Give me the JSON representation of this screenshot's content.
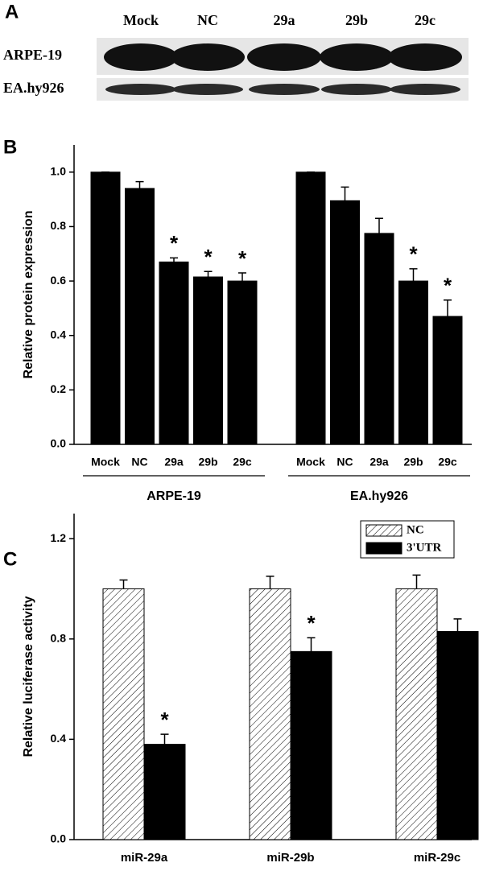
{
  "blot": {
    "panel_label": "A",
    "lanes": [
      "Mock",
      "NC",
      "29a",
      "29b",
      "29c"
    ],
    "rows": [
      "ARPE-19",
      "EA.hy926"
    ]
  },
  "chart_data": [
    {
      "type": "grouped-bar",
      "panel_label": "B",
      "y_label": "Relative protein expression",
      "ylim": [
        0,
        1.1
      ],
      "yticks": [
        {
          "value": 0,
          "label": "0.0"
        },
        {
          "value": 0.2,
          "label": "0.2"
        },
        {
          "value": 0.4,
          "label": "0.4"
        },
        {
          "value": 0.6,
          "label": "0.6"
        },
        {
          "value": 0.8,
          "label": "0.8"
        },
        {
          "value": 1,
          "label": "1.0"
        }
      ],
      "color": "#000000",
      "groups": [
        {
          "name": "ARPE-19",
          "categories": [
            "Mock",
            "NC",
            "29a",
            "29b",
            "29c"
          ],
          "values": [
            1.0,
            0.94,
            0.67,
            0.615,
            0.6
          ],
          "errors": [
            0,
            0.025,
            0.015,
            0.02,
            0.03
          ],
          "markers": [
            null,
            null,
            "*",
            "*",
            "*"
          ]
        },
        {
          "name": "EA.hy926",
          "categories": [
            "Mock",
            "NC",
            "29a",
            "29b",
            "29c"
          ],
          "values": [
            1.0,
            0.895,
            0.775,
            0.6,
            0.47
          ],
          "errors": [
            0,
            0.05,
            0.055,
            0.045,
            0.06
          ],
          "markers": [
            null,
            null,
            null,
            "*",
            "*"
          ]
        }
      ]
    },
    {
      "type": "bar",
      "panel_label": "C",
      "y_label": "Relative luciferase activity",
      "ylim": [
        0,
        1.3
      ],
      "yticks": [
        {
          "value": 0,
          "label": "0.0"
        },
        {
          "value": 0.4,
          "label": "0.4"
        },
        {
          "value": 0.8,
          "label": "0.8"
        },
        {
          "value": 1.2,
          "label": "1.2"
        }
      ],
      "categories": [
        "miR-29a",
        "miR-29b",
        "miR-29c"
      ],
      "legend": "top-right",
      "series": [
        {
          "name": "NC",
          "color": "#ffffff",
          "pattern": "hatch",
          "values": [
            1.0,
            1.0,
            1.0
          ],
          "errors": [
            0.035,
            0.05,
            0.055
          ],
          "markers": [
            null,
            null,
            null
          ]
        },
        {
          "name": "3'UTR",
          "color": "#000000",
          "values": [
            0.38,
            0.75,
            0.83
          ],
          "errors": [
            0.04,
            0.055,
            0.05
          ],
          "markers": [
            "*",
            "*",
            null
          ]
        }
      ]
    }
  ]
}
